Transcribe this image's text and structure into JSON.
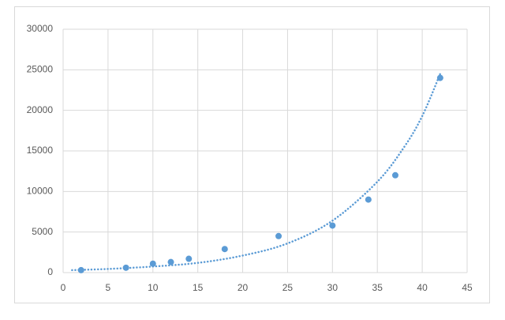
{
  "chart_data": {
    "type": "scatter",
    "series": [
      {
        "color": "#5b9bd5",
        "x": [
          2,
          7,
          10,
          12,
          14,
          18,
          24,
          30,
          34,
          37,
          42
        ],
        "values": [
          300,
          600,
          1100,
          1300,
          1700,
          2900,
          4500,
          5800,
          9000,
          12000,
          24000
        ]
      }
    ],
    "trendline": {
      "color": "#5b9bd5",
      "style": "dotted",
      "x": [
        1,
        5,
        10,
        15,
        20,
        25,
        30,
        35,
        38,
        40,
        42
      ],
      "values": [
        300,
        450,
        750,
        1200,
        2100,
        3600,
        6400,
        11200,
        15500,
        19300,
        24500
      ]
    },
    "xlim": [
      0,
      45
    ],
    "xticks": [
      0,
      5,
      10,
      15,
      20,
      25,
      30,
      35,
      40,
      45
    ],
    "ylim": [
      0,
      30000
    ],
    "yticks": [
      0,
      5000,
      10000,
      15000,
      20000,
      25000,
      30000
    ],
    "grid": true
  }
}
